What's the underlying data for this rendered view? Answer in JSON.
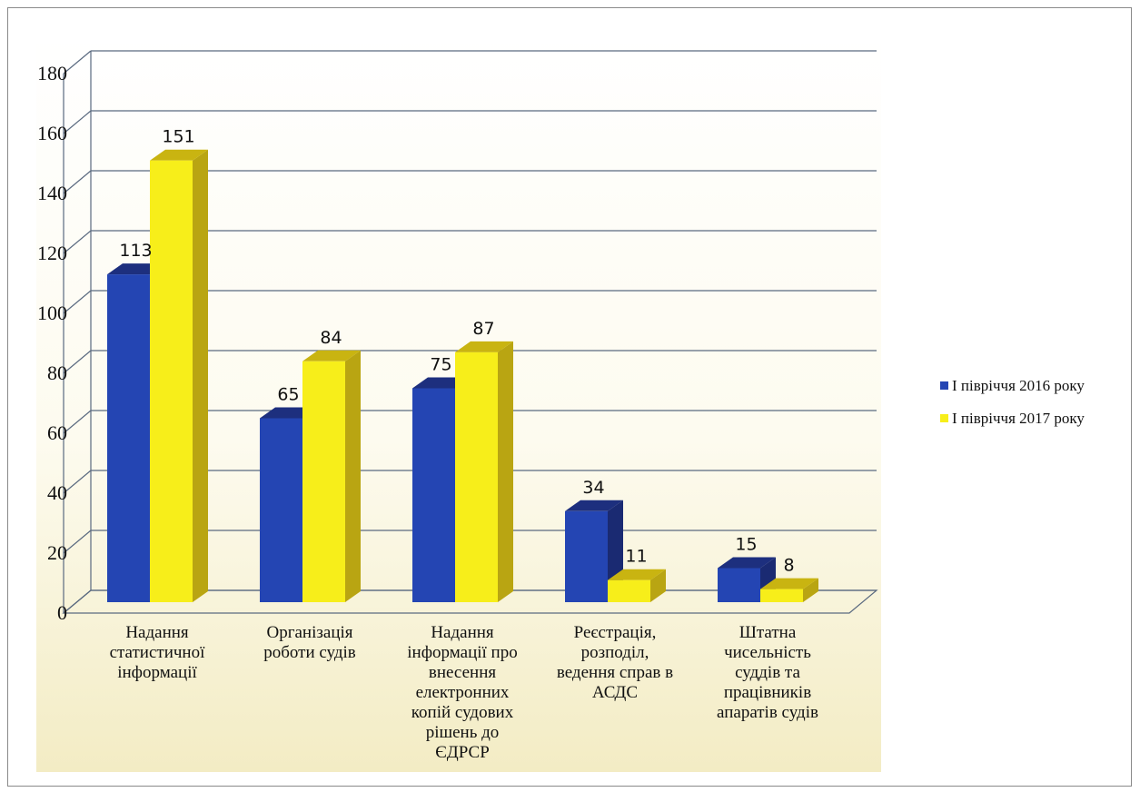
{
  "chart_data": {
    "type": "bar",
    "categories": [
      [
        "Надання",
        "статистичної",
        "інформації"
      ],
      [
        "Організація",
        "роботи судів"
      ],
      [
        "Надання",
        "інформації про",
        "внесення",
        "електронних",
        "копій судових",
        "рішень до",
        "ЄДРСР"
      ],
      [
        "Реєстрація,",
        "розподіл,",
        "ведення справ в",
        "АСДС"
      ],
      [
        "Штатна",
        "чисельність",
        "суддів та",
        "працівників",
        "апаратів судів"
      ]
    ],
    "series": [
      {
        "name": "I півріччя  2016 року",
        "values": [
          113,
          65,
          75,
          34,
          15
        ],
        "color": "#2445b3",
        "top_color": "#1d2f7e",
        "side_color": "#1a2a72"
      },
      {
        "name": "I півріччя  2017 року",
        "values": [
          151,
          84,
          87,
          11,
          8
        ],
        "color": "#f7ee1a",
        "top_color": "#c9b411",
        "side_color": "#b9a512"
      }
    ],
    "y_ticks": [
      "0",
      "20",
      "40",
      "60",
      "80",
      "100",
      "120",
      "140",
      "160",
      "180"
    ],
    "ylim": [
      0,
      180
    ],
    "grid": true,
    "legend_position": "right"
  }
}
